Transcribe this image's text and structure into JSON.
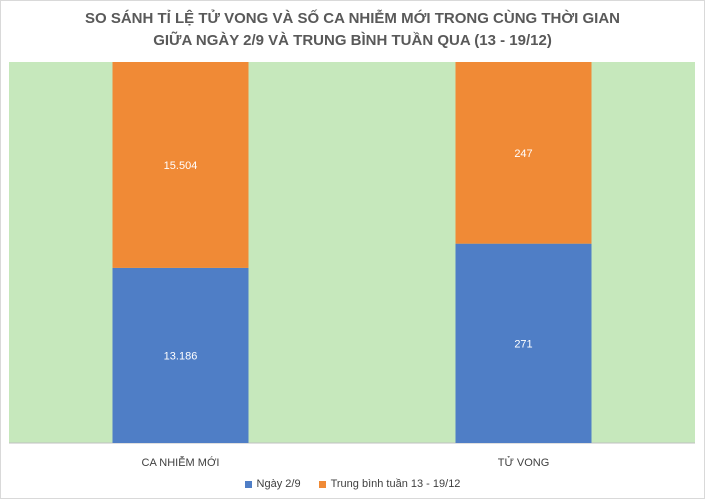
{
  "chart_data": {
    "type": "bar",
    "stacked": true,
    "title_lines": [
      "SO SÁNH TỈ LỆ TỬ VONG VÀ SỐ CA NHIỄM MỚI TRONG CÙNG THỜI GIAN",
      "GIỮA NGÀY 2/9 VÀ TRUNG BÌNH TUẦN QUA (13 - 19/12)"
    ],
    "categories": [
      "CA NHIỄM MỚI",
      "TỬ VONG"
    ],
    "series": [
      {
        "name": "Ngày 2/9",
        "values": [
          13186,
          271
        ],
        "labels": [
          "13.186",
          "271"
        ],
        "color": "#4f7ec6"
      },
      {
        "name": "Trung bình tuần 13 - 19/12",
        "values": [
          15504,
          247
        ],
        "labels": [
          "15.504",
          "247"
        ],
        "color": "#f08a36"
      }
    ],
    "normalized_100_percent": true,
    "plot_background": "#c6e8bc",
    "legend_position": "bottom",
    "grid": false
  }
}
